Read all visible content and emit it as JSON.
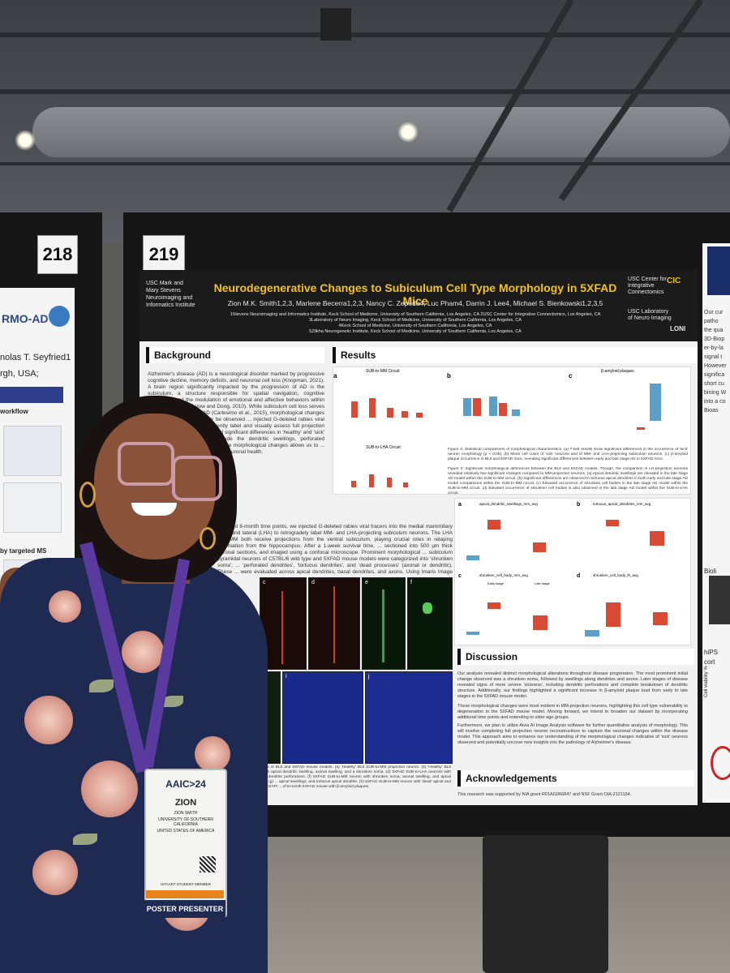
{
  "boards": {
    "left_number": "218",
    "main_number": "219"
  },
  "poster": {
    "title": "Neurodegenerative Changes to Subiculum Cell Type Morphology in 5XFAD Mice",
    "authors": "Zion M.K. Smith1,2,3, Marlene Becerra1,2,3, Nancy C. Zepeda4, Luc Pham4, Darrin J. Lee4, Michael S. Bienkowski1,2,3,5",
    "affiliations": [
      "1Stevens Neuroimaging and Informatics Institute, Keck School of Medicine, University of Southern California, Los Angeles, CA  2USC Center for Integrative Connectomics, Los Angeles, CA",
      "3Laboratory of Neuro Imaging, Keck School of Medicine, University of Southern California, Los Angeles, CA",
      "4Keck School of Medicine, University of Southern California, Los Angeles, CA",
      "5Zilkha Neurogenetic Institute, Keck School of Medicine, University of Southern California, Los Angeles, CA"
    ],
    "logo_left": "USC Mark and Mary Stevens Neuroimaging and Informatics Institute",
    "logo_right_1": "USC Center for Integrative Connectomics",
    "logo_right_2": "USC Laboratory of Neuro Imaging",
    "logo_cic": "CIC",
    "logo_loni": "LONI",
    "background_heading": "Background",
    "background_text": "Alzheimer's disease (AD) is a neurological disorder marked by progressive cognitive decline, memory deficits, and neuronal cell loss (Knopman, 2021). A brain region significantly impacted by the progression of AD is the subiculum, a structure responsible for spatial navigation, cognitive processes, and the modulation of emotional and affective behaviors within the hippocampus (Aslow and Dong, 2010). While subiculum cell loss serves as an early indicator of AD (Carlesimo et al., 2015), morphological changes to cell morphology can only be observed ... injected G-deleted rabies viral tracers into AD mice to efficiently label and visually assess full projection neurons. Our research identified significant differences in 'healthy' and 'sick' neurons. These changes include the dendritic swellings, perforated dendrites, and understanding these morphological changes allows us to ... markers to serve as indicators of neuronal health.",
    "methods_text": "At 2 and 8-month time points, we injected G-deleted rabies viral tracers into the medial mammillary (MM) and lateral (LHA) to retrogradely label MM- and LHA-projecting subiculum neurons. The LHA and MM both receive projections from the ventral subiculum, playing crucial roles in relaying information from the hippocampus. After a 1-week survival time, ... sectioned into 500 µm thick coronal sections, and imaged using a confocal microscope. Prominent morphological ... subiculum pyramidal neurons of C57BL/6 wild type and 5XFAD mouse models were categorized into 'shrunken soma', ... 'perforated dendrites', 'tortuous dendrites', and 'dead processes' (axonal or dendritic). These ... were evaluated across apical dendrites, basal dendrites, and axons. Using Imaris Image Viewer, we annotated each ... and quantified the total 'sick' characteristics present across the dorsal and ventral subiculum. Additionally, cell counts were performed using ImageJ to quantify cells along both MM- and LHA-projecting pathways throughout",
    "results_heading": "Results",
    "chart_a_title": "SUB-to-MM Circuit",
    "chart_a2_title": "SUB-to-LHA Circuit",
    "chart_c_title": "β-amyloid plaques",
    "label_a": "a",
    "label_b": "b",
    "label_c": "c",
    "fig2_caption": "Figure 2: Statistical comparisons of morphological characteristics. (a) T-test results show significant differences in the occurrence of 'sick' neuron morphology (p < 0.05). (b) Mean cell count of 'sick' neurons and of MM- and LHA-projecting subiculum neurons. (c) β-amyloid plaque occurrence in BL6 and 5XFAD mice, revealing significant differences between early and late stage AD in 5XFAD mice.",
    "fig3_caption": "Figure 3: Significant morphological differences between the BL6 and 5XFAD models. Though, the comparison in LH-projection neurons revealed relatively few significant changes compared to MM-projection neurons. (a) Apical dendritic swellings are elevated in the late stage AD model within the SUB-to-MM circuit. (b) Significant differences are observed in tortuous apical dendrites in both early and late stage AD model comparisons within the SUB-to-MM circuit. (c) Elevated occurrence of shrunken cell bodies in the late stage AD model within the SUB-to-MM circuit. (d) Elevated occurrence of shrunken cell bodies is also observed in the late stage AD model within the SUB-to-LHA circuit.",
    "box_titles": [
      "apical_dendritic_swellings_mm_avg",
      "tortuous_apical_dendrites_mm_avg",
      "shrunken_cell_body_mm_avg",
      "shrunken_cell_body_lh_avg"
    ],
    "box_labels": [
      "a",
      "b",
      "c",
      "d"
    ],
    "early_stage": "Early stage",
    "late_stage": "Late stage",
    "micro_labels": [
      "c",
      "d",
      "e",
      "f",
      "i",
      "j"
    ],
    "fig1_caption": "Subiculum neurons of BL6 and 5XFAD mouse models. (a) 'Healthy' BL6 SUB-to-MM projection neuron. (b) 'Healthy' BL6 SUB-to-LHA ... with apical dendritic swelling, axonal swelling, and a shrunken soma. (d) 5XFAD SUB-to-LHA neurons with apical dendrite ... dendrite perforations. (f) 5XFAD SUB-to-MM neuron with shrunken soma, axonal swelling, and apical dendrite swellings. (g) ... apical swellings, and tortuous apical dendrite. (h) 5XFAD SUB-to-MM neuron with 'dead' apical and basal dendrites. (j) DAPI ... of 8-month 5XFAD mouse with β-amyloid plaques.",
    "discussion_heading": "Discussion",
    "discussion_text": "Our analysis revealed distinct morphological alterations throughout disease progression. The most prominent initial change observed was a shrunken soma, followed by swellings along dendrites and axons. Later stages of disease revealed signs of more severe 'sickness', including dendritic perforations and complete breakdown of dendritic structure. Additionally, our findings highlighted a significant increase in β-amyloid plaque load from early to late stages in the 5XFAD mouse model.",
    "discussion_text2": "These morphological changes were most evident in MM-projection neurons, highlighting this cell type vulnerability to degeneration in the 5XFAD mouse model. Moving forward, we intend to broaden our dataset by incorporating additional time points and extending to older age groups.",
    "discussion_text3": "Furthermore, we plan to utilize Aivia AI Image Analysis software for further quantitative analysis of morphology. This will involve completing full projection neuron reconstructions to capture the neuronal changes within the disease model. This approach aims to enhance our understanding of the morphological changes indicative of 'sick' neurons observed and potentially uncover new insights into the pathology of Alzheimer's disease.",
    "ack_heading": "Acknowledgements",
    "ack_text": "This research was supported by NIA grant R01AG066847 and NSF Grant OIA-2121164."
  },
  "left_poster": {
    "title_fragment": "RMO-AD",
    "author_fragment": "nolas T. Seyfried1",
    "place_fragment": "rgh, USA;",
    "workflow": "workflow",
    "tagged": "by targeted MS"
  },
  "right_poster": {
    "fragments": [
      "Our cur",
      "patho",
      "the qua",
      "3D-Biop",
      "er-by-la",
      "signal t",
      "However",
      "significa",
      "short cu",
      "bining W",
      "into a co",
      "Bioas",
      "Bioli",
      "hiPS",
      "cort",
      "Cell viability %"
    ]
  },
  "badge": {
    "conference": "AAIC>24",
    "name": "ZION",
    "full_name": "ZION SMITH",
    "university": "UNIVERSITY OF SOUTHERN CALIFORNIA",
    "country": "UNITED STATES OF AMERICA",
    "member": "ISTAART STUDENT MEMBER",
    "role": "POSTER PRESENTER"
  },
  "colors": {
    "title_yellow": "#f3c21b",
    "header_black": "#1b1b1b",
    "bar_red": "#d84a34",
    "bar_blue": "#5aa0c8",
    "lanyard_purple": "#5b3aa0"
  }
}
